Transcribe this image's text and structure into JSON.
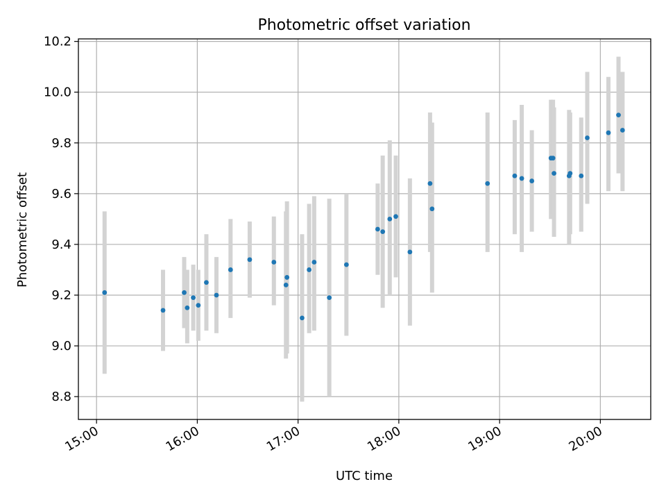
{
  "chart_data": {
    "type": "scatter",
    "title": "Photometric offset variation",
    "xlabel": "UTC time",
    "ylabel": "Photometric offset",
    "grid": true,
    "x_unit": "hours UTC",
    "xlim": [
      14.82,
      20.5
    ],
    "ylim": [
      8.71,
      10.21
    ],
    "x_ticks": [
      {
        "value": 15,
        "label": "15:00"
      },
      {
        "value": 16,
        "label": "16:00"
      },
      {
        "value": 17,
        "label": "17:00"
      },
      {
        "value": 18,
        "label": "18:00"
      },
      {
        "value": 19,
        "label": "19:00"
      },
      {
        "value": 20,
        "label": "20:00"
      }
    ],
    "y_ticks": [
      {
        "value": 8.8,
        "label": "8.8"
      },
      {
        "value": 9.0,
        "label": "9.0"
      },
      {
        "value": 9.2,
        "label": "9.2"
      },
      {
        "value": 9.4,
        "label": "9.4"
      },
      {
        "value": 9.6,
        "label": "9.6"
      },
      {
        "value": 9.8,
        "label": "9.8"
      },
      {
        "value": 10.0,
        "label": "10.0"
      },
      {
        "value": 10.2,
        "label": "10.2"
      }
    ],
    "colors": {
      "point": "#1f77b4",
      "error_bar": "#d3d3d3",
      "grid": "#b0b0b0",
      "axis": "#000000"
    },
    "series": [
      {
        "name": "offset",
        "points": [
          {
            "x": 15.08,
            "y": 9.21,
            "lo": 8.89,
            "hi": 9.53
          },
          {
            "x": 15.66,
            "y": 9.14,
            "lo": 8.98,
            "hi": 9.3
          },
          {
            "x": 15.87,
            "y": 9.21,
            "lo": 9.07,
            "hi": 9.35
          },
          {
            "x": 15.9,
            "y": 9.15,
            "lo": 9.01,
            "hi": 9.3
          },
          {
            "x": 15.96,
            "y": 9.19,
            "lo": 9.06,
            "hi": 9.32
          },
          {
            "x": 16.01,
            "y": 9.16,
            "lo": 9.02,
            "hi": 9.3
          },
          {
            "x": 16.09,
            "y": 9.25,
            "lo": 9.06,
            "hi": 9.44
          },
          {
            "x": 16.19,
            "y": 9.2,
            "lo": 9.05,
            "hi": 9.35
          },
          {
            "x": 16.33,
            "y": 9.3,
            "lo": 9.11,
            "hi": 9.5
          },
          {
            "x": 16.52,
            "y": 9.34,
            "lo": 9.19,
            "hi": 9.49
          },
          {
            "x": 16.76,
            "y": 9.33,
            "lo": 9.16,
            "hi": 9.51
          },
          {
            "x": 16.88,
            "y": 9.24,
            "lo": 8.95,
            "hi": 9.53
          },
          {
            "x": 16.89,
            "y": 9.27,
            "lo": 8.97,
            "hi": 9.57
          },
          {
            "x": 17.04,
            "y": 9.11,
            "lo": 8.78,
            "hi": 9.44
          },
          {
            "x": 17.11,
            "y": 9.3,
            "lo": 9.05,
            "hi": 9.56
          },
          {
            "x": 17.16,
            "y": 9.33,
            "lo": 9.06,
            "hi": 9.59
          },
          {
            "x": 17.31,
            "y": 9.19,
            "lo": 8.8,
            "hi": 9.58
          },
          {
            "x": 17.48,
            "y": 9.32,
            "lo": 9.04,
            "hi": 9.6
          },
          {
            "x": 17.79,
            "y": 9.46,
            "lo": 9.28,
            "hi": 9.64
          },
          {
            "x": 17.84,
            "y": 9.45,
            "lo": 9.15,
            "hi": 9.75
          },
          {
            "x": 17.91,
            "y": 9.5,
            "lo": 9.2,
            "hi": 9.81
          },
          {
            "x": 17.97,
            "y": 9.51,
            "lo": 9.27,
            "hi": 9.75
          },
          {
            "x": 18.11,
            "y": 9.37,
            "lo": 9.08,
            "hi": 9.66
          },
          {
            "x": 18.31,
            "y": 9.64,
            "lo": 9.37,
            "hi": 9.92
          },
          {
            "x": 18.33,
            "y": 9.54,
            "lo": 9.21,
            "hi": 9.88
          },
          {
            "x": 18.88,
            "y": 9.64,
            "lo": 9.37,
            "hi": 9.92
          },
          {
            "x": 19.15,
            "y": 9.67,
            "lo": 9.44,
            "hi": 9.89
          },
          {
            "x": 19.22,
            "y": 9.66,
            "lo": 9.37,
            "hi": 9.95
          },
          {
            "x": 19.32,
            "y": 9.65,
            "lo": 9.45,
            "hi": 9.85
          },
          {
            "x": 19.51,
            "y": 9.74,
            "lo": 9.5,
            "hi": 9.97
          },
          {
            "x": 19.53,
            "y": 9.74,
            "lo": 9.52,
            "hi": 9.97
          },
          {
            "x": 19.54,
            "y": 9.68,
            "lo": 9.43,
            "hi": 9.94
          },
          {
            "x": 19.69,
            "y": 9.67,
            "lo": 9.4,
            "hi": 9.93
          },
          {
            "x": 19.7,
            "y": 9.68,
            "lo": 9.44,
            "hi": 9.92
          },
          {
            "x": 19.81,
            "y": 9.67,
            "lo": 9.45,
            "hi": 9.9
          },
          {
            "x": 19.87,
            "y": 9.82,
            "lo": 9.56,
            "hi": 10.08
          },
          {
            "x": 20.08,
            "y": 9.84,
            "lo": 9.61,
            "hi": 10.06
          },
          {
            "x": 20.18,
            "y": 9.91,
            "lo": 9.68,
            "hi": 10.14
          },
          {
            "x": 20.22,
            "y": 9.85,
            "lo": 9.61,
            "hi": 10.08
          }
        ]
      }
    ]
  }
}
